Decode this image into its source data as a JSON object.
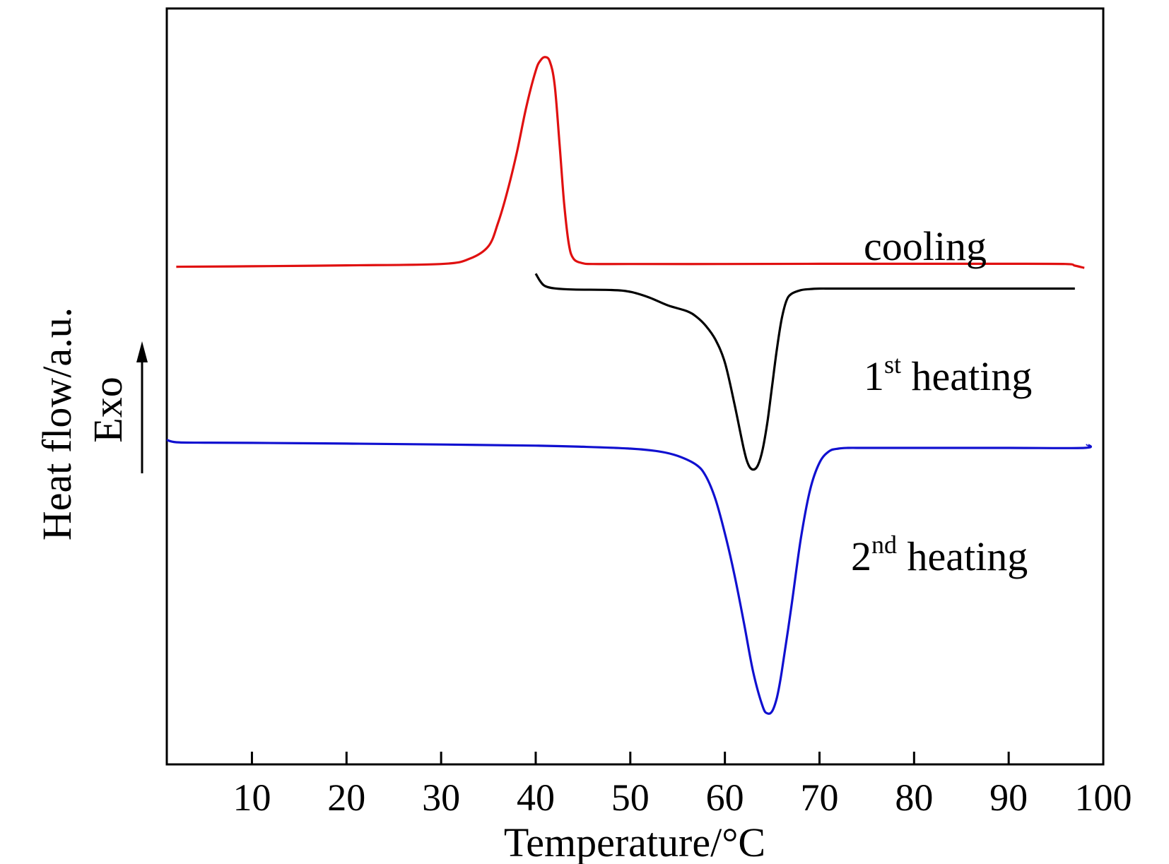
{
  "chart_data": {
    "type": "line",
    "title": "",
    "xlabel": "Temperature/°C",
    "ylabel": "Heat flow/a.u.",
    "direction_label": "Exo",
    "xlim": [
      1,
      100
    ],
    "x_ticks": [
      10,
      20,
      30,
      40,
      50,
      60,
      70,
      80,
      90,
      100
    ],
    "y_ticks_shown": false,
    "grid": false,
    "legend": "none (series labeled directly on plot)",
    "series": [
      {
        "name": "cooling",
        "color": "#e01010",
        "label_parts": {
          "base": "cooling",
          "sup": "",
          "rest": ""
        },
        "x": [
          2,
          10,
          20,
          30,
          33,
          35,
          36,
          37,
          38,
          39,
          40,
          40.5,
          41,
          41.5,
          42,
          42.5,
          43,
          43.5,
          44,
          45,
          46,
          50,
          60,
          70,
          80,
          90,
          96,
          97,
          98
        ],
        "y": [
          0.0,
          0.02,
          0.06,
          0.12,
          0.35,
          0.9,
          1.9,
          3.3,
          5.0,
          7.0,
          8.6,
          9.05,
          9.2,
          9.0,
          8.0,
          5.5,
          2.8,
          1.0,
          0.35,
          0.15,
          0.12,
          0.12,
          0.12,
          0.13,
          0.13,
          0.13,
          0.12,
          0.05,
          -0.05
        ]
      },
      {
        "name": "1st heating",
        "color": "#000000",
        "label_parts": {
          "base": "1",
          "sup": "st",
          "rest": " heating"
        },
        "x": [
          40,
          40.5,
          41,
          42,
          44,
          48,
          50,
          52,
          54,
          56,
          57,
          58,
          59,
          60,
          61,
          62,
          62.5,
          63,
          63.5,
          64,
          64.5,
          65,
          65.5,
          66,
          66.5,
          67,
          68,
          69,
          70,
          72,
          80,
          90,
          97
        ],
        "y": [
          -0.3,
          -0.65,
          -0.85,
          -0.95,
          -1.0,
          -1.02,
          -1.1,
          -1.35,
          -1.7,
          -1.95,
          -2.2,
          -2.6,
          -3.2,
          -4.2,
          -6.0,
          -8.0,
          -8.7,
          -8.9,
          -8.7,
          -8.0,
          -6.8,
          -5.2,
          -3.6,
          -2.3,
          -1.5,
          -1.2,
          -1.03,
          -0.98,
          -0.96,
          -0.96,
          -0.96,
          -0.96,
          -0.96
        ]
      },
      {
        "name": "2nd heating",
        "color": "#1010d0",
        "label_parts": {
          "base": "2",
          "sup": "nd",
          "rest": " heating"
        },
        "x": [
          1,
          2,
          5,
          10,
          20,
          30,
          40,
          45,
          50,
          53,
          55,
          57,
          58,
          59,
          60,
          61,
          62,
          63,
          64,
          64.5,
          65,
          65.5,
          66,
          67,
          68,
          69,
          70,
          71,
          72,
          73,
          75,
          80,
          90,
          98,
          98.3
        ],
        "y": [
          -7.6,
          -7.7,
          -7.72,
          -7.73,
          -7.76,
          -7.8,
          -7.85,
          -7.9,
          -7.98,
          -8.1,
          -8.3,
          -8.7,
          -9.2,
          -10.2,
          -11.7,
          -13.5,
          -15.6,
          -17.8,
          -19.3,
          -19.6,
          -19.5,
          -18.9,
          -17.8,
          -15.0,
          -12.0,
          -9.8,
          -8.6,
          -8.1,
          -7.98,
          -7.95,
          -7.95,
          -7.95,
          -7.95,
          -7.95,
          -7.8
        ]
      }
    ]
  }
}
